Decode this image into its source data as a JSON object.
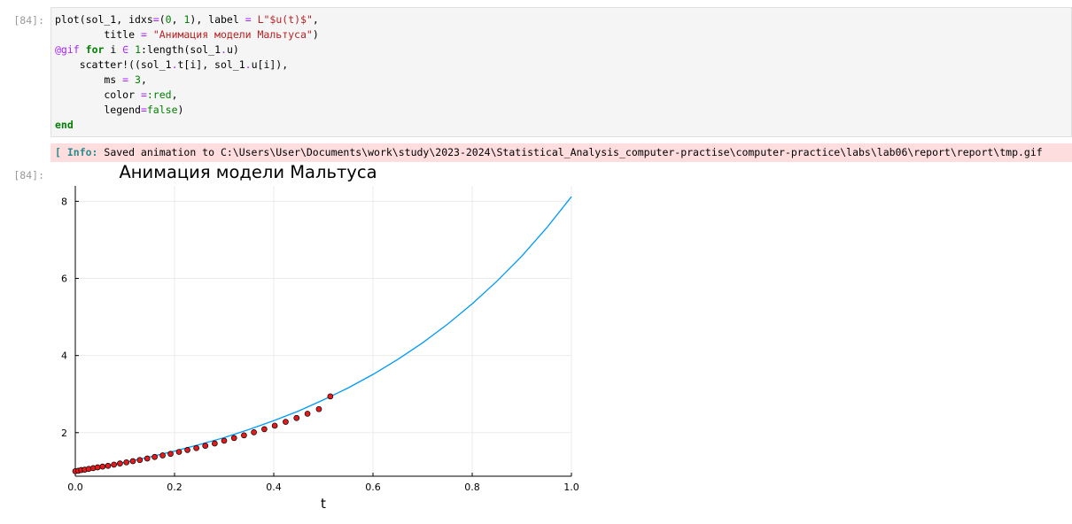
{
  "cell_input": {
    "prompt": "[84]:",
    "lines": [
      [
        {
          "t": "plot(sol_1, idxs"
        },
        {
          "t": "=",
          "c": "op"
        },
        {
          "t": "("
        },
        {
          "t": "0",
          "c": "num"
        },
        {
          "t": ", "
        },
        {
          "t": "1",
          "c": "num"
        },
        {
          "t": "), label "
        },
        {
          "t": "=",
          "c": "op"
        },
        {
          "t": " "
        },
        {
          "t": "L\"$u(t)$\"",
          "c": "str"
        },
        {
          "t": ","
        }
      ],
      [
        {
          "t": "        title "
        },
        {
          "t": "=",
          "c": "op"
        },
        {
          "t": " "
        },
        {
          "t": "\"Анимация модели Мальтуса\"",
          "c": "str"
        },
        {
          "t": ")"
        }
      ],
      [
        {
          "t": "@gif",
          "c": "mac"
        },
        {
          "t": " "
        },
        {
          "t": "for",
          "c": "kw"
        },
        {
          "t": " i "
        },
        {
          "t": "∈",
          "c": "op"
        },
        {
          "t": " "
        },
        {
          "t": "1",
          "c": "num"
        },
        {
          "t": ":length(sol_1"
        },
        {
          "t": ".",
          "c": "op"
        },
        {
          "t": "u)"
        }
      ],
      [
        {
          "t": "    scatter!((sol_1"
        },
        {
          "t": ".",
          "c": "op"
        },
        {
          "t": "t[i], sol_1"
        },
        {
          "t": ".",
          "c": "op"
        },
        {
          "t": "u[i]),"
        }
      ],
      [
        {
          "t": "        ms "
        },
        {
          "t": "=",
          "c": "op"
        },
        {
          "t": " "
        },
        {
          "t": "3",
          "c": "num"
        },
        {
          "t": ","
        }
      ],
      [
        {
          "t": "        color "
        },
        {
          "t": "=",
          "c": "op"
        },
        {
          "t": ":red",
          "c": "num"
        },
        {
          "t": ","
        }
      ],
      [
        {
          "t": "        legend"
        },
        {
          "t": "=",
          "c": "op"
        },
        {
          "t": "false",
          "c": "num"
        },
        {
          "t": ")"
        }
      ],
      [
        {
          "t": "end",
          "c": "kw"
        }
      ]
    ]
  },
  "cell_output": {
    "info_tag": "[ Info:",
    "info_message": " Saved animation to C:\\Users\\User\\Documents\\work\\study\\2023-2024\\Statistical_Analysis_computer-practise\\computer-practice\\labs\\lab06\\report\\report\\tmp.gif",
    "prompt": "[84]:"
  },
  "colors": {
    "code_background": "#f5f5f5",
    "info_background": "#fddddd",
    "line": "#009af9",
    "marker_fill": "#e41a1c",
    "grid": "#ebebeb"
  },
  "chart_data": {
    "type": "line",
    "title": "Анимация модели Мальтуса",
    "xlabel": "t",
    "ylabel": "",
    "xlim": [
      0,
      1.0
    ],
    "ylim": [
      0.87,
      8.4
    ],
    "xticks": [
      0.0,
      0.2,
      0.4,
      0.6,
      0.8,
      1.0
    ],
    "xtick_labels": [
      "0.0",
      "0.2",
      "0.4",
      "0.6",
      "0.8",
      "1.0"
    ],
    "yticks": [
      2,
      4,
      6,
      8
    ],
    "ytick_labels": [
      "2",
      "4",
      "6",
      "8"
    ],
    "grid": true,
    "legend": false,
    "curve": {
      "x": [
        0,
        0.05,
        0.1,
        0.15,
        0.2,
        0.25,
        0.3,
        0.35,
        0.4,
        0.45,
        0.5,
        0.55,
        0.6,
        0.65,
        0.7,
        0.75,
        0.8,
        0.85,
        0.9,
        0.95,
        1.0
      ],
      "y": [
        1.0,
        1.11,
        1.23,
        1.37,
        1.52,
        1.69,
        1.87,
        2.08,
        2.31,
        2.56,
        2.85,
        3.16,
        3.51,
        3.9,
        4.33,
        4.81,
        5.34,
        5.93,
        6.58,
        7.31,
        8.12
      ]
    },
    "markers": {
      "x": [
        0.0,
        0.006,
        0.012,
        0.019,
        0.027,
        0.036,
        0.045,
        0.055,
        0.066,
        0.078,
        0.09,
        0.103,
        0.116,
        0.13,
        0.145,
        0.16,
        0.176,
        0.192,
        0.209,
        0.226,
        0.244,
        0.262,
        0.281,
        0.3,
        0.32,
        0.34,
        0.36,
        0.381,
        0.402,
        0.424,
        0.446,
        0.468,
        0.491,
        0.514
      ],
      "y": [
        1.0,
        1.01,
        1.03,
        1.04,
        1.06,
        1.08,
        1.1,
        1.12,
        1.14,
        1.17,
        1.2,
        1.23,
        1.26,
        1.29,
        1.33,
        1.37,
        1.41,
        1.45,
        1.5,
        1.55,
        1.6,
        1.66,
        1.72,
        1.79,
        1.86,
        1.93,
        2.01,
        2.09,
        2.18,
        2.28,
        2.38,
        2.49,
        2.61,
        2.94
      ]
    }
  }
}
